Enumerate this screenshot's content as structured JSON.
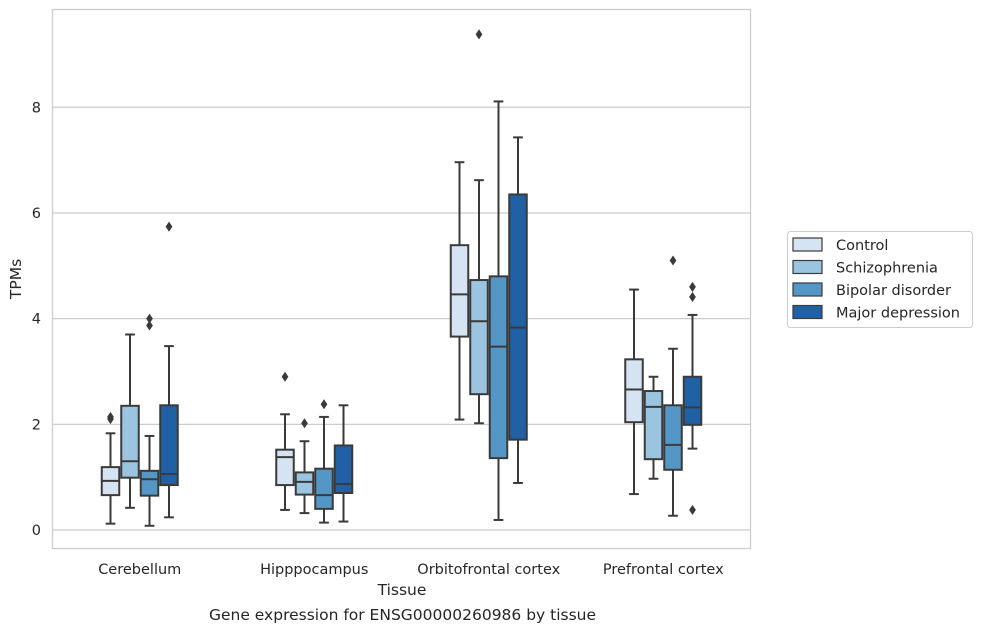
{
  "caption": "Gene expression for ENSG00000260986 by tissue",
  "chart_data": {
    "type": "box",
    "xlabel": "Tissue",
    "ylabel": "TPMs",
    "ylim": [
      -0.35,
      9.85
    ],
    "yticks": [
      0,
      2,
      4,
      6,
      8
    ],
    "grid": "horizontal",
    "legend_position": "right",
    "categories": [
      "Cerebellum",
      "Hipppocampus",
      "Orbitofrontal cortex",
      "Prefrontal cortex"
    ],
    "series": [
      {
        "name": "Control",
        "color": "#d5e3f2",
        "boxes": [
          {
            "whislo": 0.12,
            "q1": 0.66,
            "med": 0.93,
            "q3": 1.19,
            "whishi": 1.83,
            "fliers": [
              2.1,
              2.14
            ]
          },
          {
            "whislo": 0.38,
            "q1": 0.85,
            "med": 1.38,
            "q3": 1.52,
            "whishi": 2.19,
            "fliers": [
              2.9
            ]
          },
          {
            "whislo": 2.09,
            "q1": 3.66,
            "med": 4.46,
            "q3": 5.39,
            "whishi": 6.96,
            "fliers": []
          },
          {
            "whislo": 0.68,
            "q1": 2.04,
            "med": 2.66,
            "q3": 3.23,
            "whishi": 4.55,
            "fliers": []
          }
        ]
      },
      {
        "name": "Schizophrenia",
        "color": "#9ac4e0",
        "boxes": [
          {
            "whislo": 0.42,
            "q1": 0.99,
            "med": 1.3,
            "q3": 2.35,
            "whishi": 3.7,
            "fliers": []
          },
          {
            "whislo": 0.32,
            "q1": 0.67,
            "med": 0.91,
            "q3": 1.09,
            "whishi": 1.68,
            "fliers": [
              2.02
            ]
          },
          {
            "whislo": 2.02,
            "q1": 2.57,
            "med": 3.95,
            "q3": 4.73,
            "whishi": 6.62,
            "fliers": [
              9.38
            ]
          },
          {
            "whislo": 0.97,
            "q1": 1.34,
            "med": 2.33,
            "q3": 2.63,
            "whishi": 2.9,
            "fliers": []
          }
        ]
      },
      {
        "name": "Bipolar disorder",
        "color": "#5497c6",
        "boxes": [
          {
            "whislo": 0.08,
            "q1": 0.65,
            "med": 0.96,
            "q3": 1.12,
            "whishi": 1.78,
            "fliers": [
              3.87,
              4.0
            ]
          },
          {
            "whislo": 0.14,
            "q1": 0.4,
            "med": 0.66,
            "q3": 1.16,
            "whishi": 2.14,
            "fliers": [
              2.38
            ]
          },
          {
            "whislo": 0.19,
            "q1": 1.36,
            "med": 3.47,
            "q3": 4.8,
            "whishi": 8.11,
            "fliers": []
          },
          {
            "whislo": 0.27,
            "q1": 1.14,
            "med": 1.61,
            "q3": 2.36,
            "whishi": 3.43,
            "fliers": [
              5.1
            ]
          }
        ]
      },
      {
        "name": "Major depression",
        "color": "#2060a4",
        "boxes": [
          {
            "whislo": 0.24,
            "q1": 0.85,
            "med": 1.06,
            "q3": 2.36,
            "whishi": 3.48,
            "fliers": [
              5.74
            ]
          },
          {
            "whislo": 0.16,
            "q1": 0.7,
            "med": 0.87,
            "q3": 1.6,
            "whishi": 2.36,
            "fliers": []
          },
          {
            "whislo": 0.89,
            "q1": 1.71,
            "med": 3.83,
            "q3": 6.35,
            "whishi": 7.43,
            "fliers": []
          },
          {
            "whislo": 1.54,
            "q1": 1.99,
            "med": 2.32,
            "q3": 2.9,
            "whishi": 4.07,
            "fliers": [
              0.38,
              4.41,
              4.6
            ]
          }
        ]
      }
    ]
  }
}
